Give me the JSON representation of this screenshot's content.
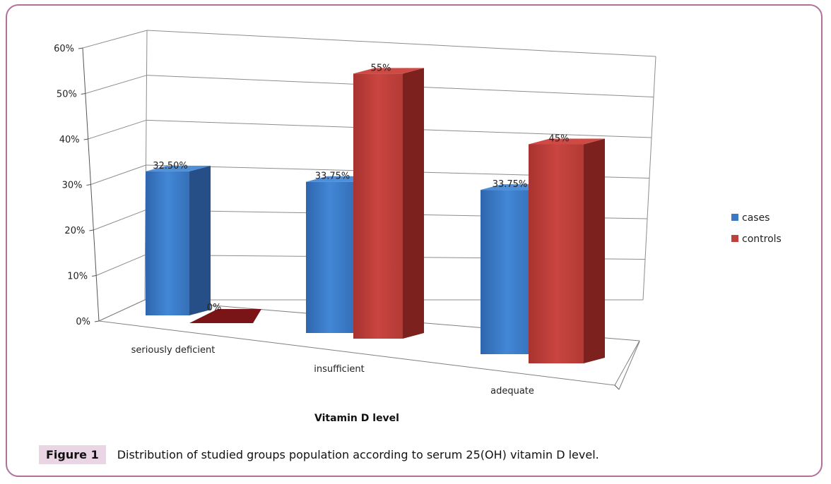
{
  "chart_data": {
    "type": "bar",
    "style": "3d-clustered-column",
    "categories": [
      "seriously deficient",
      "insufficient",
      "adequate"
    ],
    "series": [
      {
        "name": "cases",
        "values": [
          32.5,
          33.75,
          33.75
        ],
        "labels": [
          "32.50%",
          "33.75%",
          "33.75%"
        ],
        "color": "#3b78c3"
      },
      {
        "name": "controls",
        "values": [
          0,
          55,
          45
        ],
        "labels": [
          "0%",
          "55%",
          "45%"
        ],
        "color": "#c0403d"
      }
    ],
    "ylim": [
      0,
      60
    ],
    "yticks": [
      "0%",
      "10%",
      "20%",
      "30%",
      "40%",
      "50%",
      "60%"
    ],
    "xlabel": "Vitamin D level",
    "ylabel": "",
    "legend_position": "right",
    "grid": true
  },
  "caption": {
    "label": "Figure 1",
    "text": "Distribution of studied groups population according to serum 25(OH) vitamin D level."
  },
  "colors": {
    "frame": "#b0709a",
    "caption_bg": "#e9d5e3",
    "grid": "#7f7f7f"
  }
}
